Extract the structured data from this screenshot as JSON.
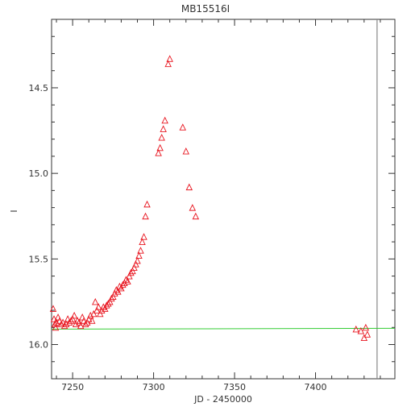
{
  "chart_data": {
    "type": "scatter",
    "title": "MB15516I",
    "xlabel": "JD - 2450000",
    "ylabel": "I",
    "xlim": [
      7237,
      7449
    ],
    "ylim": [
      16.2,
      14.1
    ],
    "y_axis_inverted": true,
    "x_ticks": [
      7250,
      7300,
      7350,
      7400
    ],
    "x_tick_labels": [
      "7250",
      "7300",
      "7350",
      "7400"
    ],
    "y_ticks": [
      14.5,
      15.0,
      15.5,
      16.0
    ],
    "y_tick_labels": [
      "14.5",
      "15.0",
      "15.5",
      "16.0"
    ],
    "marker": "open-triangle",
    "series": [
      {
        "color": "#e8141e",
        "points": [
          [
            7238,
            15.79
          ],
          [
            7238.5,
            15.85
          ],
          [
            7239,
            15.88
          ],
          [
            7239.5,
            15.9
          ],
          [
            7240,
            15.87
          ],
          [
            7241,
            15.84
          ],
          [
            7242,
            15.86
          ],
          [
            7243,
            15.88
          ],
          [
            7244,
            15.87
          ],
          [
            7245,
            15.89
          ],
          [
            7246,
            15.88
          ],
          [
            7247,
            15.85
          ],
          [
            7248,
            15.87
          ],
          [
            7249,
            15.86
          ],
          [
            7250,
            15.85
          ],
          [
            7251,
            15.83
          ],
          [
            7252,
            15.88
          ],
          [
            7253,
            15.86
          ],
          [
            7254,
            15.87
          ],
          [
            7255,
            15.89
          ],
          [
            7256,
            15.84
          ],
          [
            7257,
            15.86
          ],
          [
            7258,
            15.88
          ],
          [
            7259,
            15.87
          ],
          [
            7260,
            15.85
          ],
          [
            7261,
            15.83
          ],
          [
            7262,
            15.86
          ],
          [
            7263,
            15.82
          ],
          [
            7264,
            15.75
          ],
          [
            7265,
            15.8
          ],
          [
            7266,
            15.78
          ],
          [
            7267,
            15.82
          ],
          [
            7268,
            15.8
          ],
          [
            7269,
            15.78
          ],
          [
            7270,
            15.79
          ],
          [
            7271,
            15.77
          ],
          [
            7272,
            15.76
          ],
          [
            7273,
            15.75
          ],
          [
            7274,
            15.73
          ],
          [
            7275,
            15.72
          ],
          [
            7276,
            15.7
          ],
          [
            7277,
            15.68
          ],
          [
            7278,
            15.69
          ],
          [
            7279,
            15.66
          ],
          [
            7280,
            15.67
          ],
          [
            7281,
            15.65
          ],
          [
            7282,
            15.64
          ],
          [
            7283,
            15.62
          ],
          [
            7284,
            15.63
          ],
          [
            7285,
            15.6
          ],
          [
            7286,
            15.58
          ],
          [
            7287,
            15.57
          ],
          [
            7288,
            15.55
          ],
          [
            7289,
            15.53
          ],
          [
            7290,
            15.51
          ],
          [
            7291,
            15.48
          ],
          [
            7292,
            15.45
          ],
          [
            7293,
            15.4
          ],
          [
            7294,
            15.37
          ],
          [
            7295,
            15.25
          ],
          [
            7296,
            15.18
          ],
          [
            7303,
            14.88
          ],
          [
            7304,
            14.85
          ],
          [
            7305,
            14.79
          ],
          [
            7306,
            14.74
          ],
          [
            7307,
            14.69
          ],
          [
            7309,
            14.36
          ],
          [
            7310,
            14.33
          ],
          [
            7318,
            14.73
          ],
          [
            7320,
            14.87
          ],
          [
            7322,
            15.08
          ],
          [
            7324,
            15.2
          ],
          [
            7326,
            15.25
          ],
          [
            7425,
            15.91
          ],
          [
            7428,
            15.92
          ],
          [
            7430,
            15.96
          ],
          [
            7431,
            15.9
          ],
          [
            7432,
            15.94
          ]
        ]
      }
    ],
    "reference_line": {
      "color": "#33cc33",
      "y": 15.91
    },
    "vertical_line": {
      "x": 7438,
      "color": "#888888"
    },
    "grid": false
  }
}
